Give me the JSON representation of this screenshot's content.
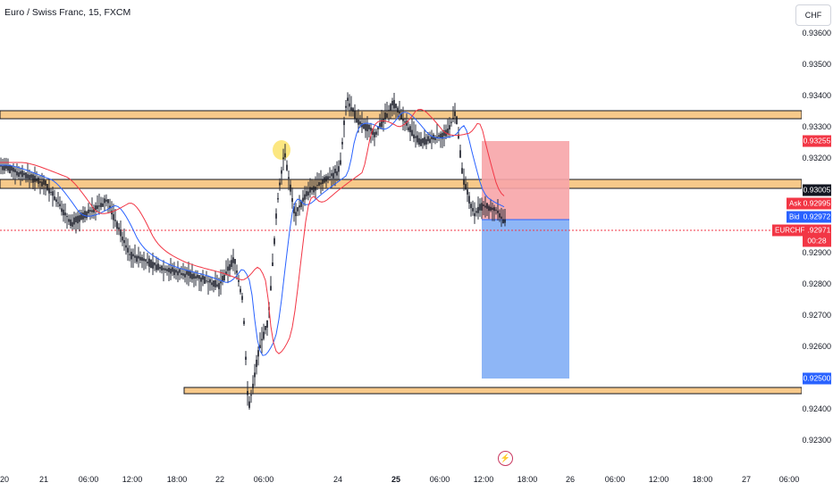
{
  "header": {
    "title": "Euro / Swiss Franc, 15, FXCM"
  },
  "currency_button": {
    "label": "CHF"
  },
  "price_axis": {
    "ticks": [
      "0.93600",
      "0.93500",
      "0.93400",
      "0.93300",
      "0.93200",
      "0.92900",
      "0.92800",
      "0.92700",
      "0.92600",
      "0.92400",
      "0.92300"
    ]
  },
  "price_labels": {
    "stop": "0.93255",
    "resistance": "0.93005",
    "ask": "0.92995",
    "bid": "0.92972",
    "last": "0.92971",
    "countdown": "00:28",
    "target": "0.92500"
  },
  "side_tags": {
    "ask": "Ask",
    "bid": "Bid",
    "symbol": "EURCHF"
  },
  "time_axis": {
    "ticks": [
      "20",
      "21",
      "06:00",
      "12:00",
      "18:00",
      "22",
      "06:00",
      "24",
      "25",
      "06:00",
      "12:00",
      "18:00",
      "26",
      "06:00",
      "12:00",
      "18:00",
      "27",
      "06:00"
    ]
  },
  "colors": {
    "up_candle": "#131722",
    "zone_fill": "#f7c98a",
    "stop_zone": "#f7a5a8",
    "target_zone": "#7aa9f4",
    "ema_fast": "#2962ff",
    "ema_slow": "#f23645"
  },
  "icons": {
    "flash": "lightning-icon"
  }
}
